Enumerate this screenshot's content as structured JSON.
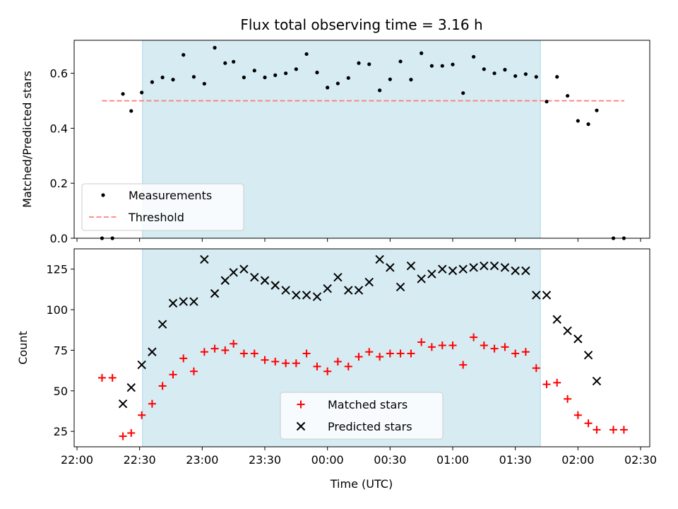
{
  "chart_data": [
    {
      "type": "scatter",
      "title": "Flux total observing time = 3.16 h",
      "xlabel": "",
      "ylabel": "Matched/Predicted stars",
      "ylim": [
        0,
        0.72
      ],
      "yticks": [
        "0.0",
        "0.2",
        "0.4",
        "0.6"
      ],
      "xticks_hours": [
        22,
        22.5,
        23,
        23.5,
        24,
        24.5,
        25,
        25.5,
        26,
        26.5
      ],
      "highlight_span_hours": [
        22.523,
        25.7
      ],
      "legend": {
        "position": "lower-left",
        "measurements": "Measurements",
        "threshold": "Threshold"
      },
      "threshold": {
        "value": 0.5,
        "x_range_hours": [
          22.2,
          26.37
        ],
        "color": "#ff7f7f"
      },
      "series": [
        {
          "name": "Measurements",
          "color": "#000000",
          "points": [
            [
              22.2,
              0.0
            ],
            [
              22.283,
              0.0
            ],
            [
              22.367,
              0.525
            ],
            [
              22.433,
              0.463
            ],
            [
              22.517,
              0.53
            ],
            [
              22.6,
              0.568
            ],
            [
              22.683,
              0.585
            ],
            [
              22.767,
              0.577
            ],
            [
              22.85,
              0.667
            ],
            [
              22.933,
              0.587
            ],
            [
              23.017,
              0.562
            ],
            [
              23.1,
              0.693
            ],
            [
              23.183,
              0.637
            ],
            [
              23.25,
              0.642
            ],
            [
              23.333,
              0.585
            ],
            [
              23.417,
              0.61
            ],
            [
              23.5,
              0.585
            ],
            [
              23.583,
              0.593
            ],
            [
              23.667,
              0.6
            ],
            [
              23.75,
              0.615
            ],
            [
              23.833,
              0.67
            ],
            [
              23.917,
              0.603
            ],
            [
              24.0,
              0.548
            ],
            [
              24.083,
              0.563
            ],
            [
              24.167,
              0.583
            ],
            [
              24.25,
              0.637
            ],
            [
              24.333,
              0.633
            ],
            [
              24.417,
              0.538
            ],
            [
              24.5,
              0.578
            ],
            [
              24.583,
              0.643
            ],
            [
              24.667,
              0.577
            ],
            [
              24.75,
              0.673
            ],
            [
              24.833,
              0.627
            ],
            [
              24.917,
              0.627
            ],
            [
              25.0,
              0.632
            ],
            [
              25.083,
              0.528
            ],
            [
              25.167,
              0.66
            ],
            [
              25.25,
              0.615
            ],
            [
              25.333,
              0.6
            ],
            [
              25.417,
              0.613
            ],
            [
              25.5,
              0.59
            ],
            [
              25.583,
              0.597
            ],
            [
              25.667,
              0.587
            ],
            [
              25.75,
              0.497
            ],
            [
              25.833,
              0.587
            ],
            [
              25.917,
              0.518
            ],
            [
              26.0,
              0.427
            ],
            [
              26.083,
              0.415
            ],
            [
              26.15,
              0.465
            ],
            [
              26.283,
              0.0
            ],
            [
              26.367,
              0.0
            ]
          ]
        }
      ]
    },
    {
      "type": "scatter",
      "title": "",
      "xlabel": "Time (UTC)",
      "ylabel": "Count",
      "ylim": [
        15.5,
        137.5
      ],
      "yticks": [
        "25",
        "50",
        "75",
        "100",
        "125"
      ],
      "xtick_labels": [
        "22:00",
        "22:30",
        "23:00",
        "23:30",
        "00:00",
        "00:30",
        "01:00",
        "01:30",
        "02:00",
        "02:30"
      ],
      "xticks_hours": [
        22,
        22.5,
        23,
        23.5,
        24,
        24.5,
        25,
        25.5,
        26,
        26.5
      ],
      "highlight_span_hours": [
        22.523,
        25.7
      ],
      "legend": {
        "position": "lower-center",
        "matched": "Matched stars",
        "predicted": "Predicted stars"
      },
      "series": [
        {
          "name": "Matched stars",
          "marker": "plus",
          "color": "#ff0000",
          "points": [
            [
              22.2,
              58
            ],
            [
              22.283,
              58
            ],
            [
              22.367,
              22
            ],
            [
              22.433,
              24
            ],
            [
              22.517,
              35
            ],
            [
              22.6,
              42
            ],
            [
              22.683,
              53
            ],
            [
              22.767,
              60
            ],
            [
              22.85,
              70
            ],
            [
              22.933,
              62
            ],
            [
              23.017,
              74
            ],
            [
              23.1,
              76
            ],
            [
              23.183,
              75
            ],
            [
              23.25,
              79
            ],
            [
              23.333,
              73
            ],
            [
              23.417,
              73
            ],
            [
              23.5,
              69
            ],
            [
              23.583,
              68
            ],
            [
              23.667,
              67
            ],
            [
              23.75,
              67
            ],
            [
              23.833,
              73
            ],
            [
              23.917,
              65
            ],
            [
              24.0,
              62
            ],
            [
              24.083,
              68
            ],
            [
              24.167,
              65
            ],
            [
              24.25,
              71
            ],
            [
              24.333,
              74
            ],
            [
              24.417,
              71
            ],
            [
              24.5,
              73
            ],
            [
              24.583,
              73
            ],
            [
              24.667,
              73
            ],
            [
              24.75,
              80
            ],
            [
              24.833,
              77
            ],
            [
              24.917,
              78
            ],
            [
              25.0,
              78
            ],
            [
              25.083,
              66
            ],
            [
              25.167,
              83
            ],
            [
              25.25,
              78
            ],
            [
              25.333,
              76
            ],
            [
              25.417,
              77
            ],
            [
              25.5,
              73
            ],
            [
              25.583,
              74
            ],
            [
              25.667,
              64
            ],
            [
              25.75,
              54
            ],
            [
              25.833,
              55
            ],
            [
              25.917,
              45
            ],
            [
              26.0,
              35
            ],
            [
              26.083,
              30
            ],
            [
              26.15,
              26
            ],
            [
              26.283,
              26
            ],
            [
              26.367,
              26
            ]
          ]
        },
        {
          "name": "Predicted stars",
          "marker": "x",
          "color": "#000000",
          "points": [
            [
              22.367,
              42
            ],
            [
              22.433,
              52
            ],
            [
              22.517,
              66
            ],
            [
              22.6,
              74
            ],
            [
              22.683,
              91
            ],
            [
              22.767,
              104
            ],
            [
              22.85,
              105
            ],
            [
              22.933,
              105
            ],
            [
              23.017,
              131
            ],
            [
              23.1,
              110
            ],
            [
              23.183,
              118
            ],
            [
              23.25,
              123
            ],
            [
              23.333,
              125
            ],
            [
              23.417,
              120
            ],
            [
              23.5,
              118
            ],
            [
              23.583,
              115
            ],
            [
              23.667,
              112
            ],
            [
              23.75,
              109
            ],
            [
              23.833,
              109
            ],
            [
              23.917,
              108
            ],
            [
              24.0,
              113
            ],
            [
              24.083,
              120
            ],
            [
              24.167,
              112
            ],
            [
              24.25,
              112
            ],
            [
              24.333,
              117
            ],
            [
              24.417,
              131
            ],
            [
              24.5,
              126
            ],
            [
              24.583,
              114
            ],
            [
              24.667,
              127
            ],
            [
              24.75,
              119
            ],
            [
              24.833,
              122
            ],
            [
              24.917,
              125
            ],
            [
              25.0,
              124
            ],
            [
              25.083,
              125
            ],
            [
              25.167,
              126
            ],
            [
              25.25,
              127
            ],
            [
              25.333,
              127
            ],
            [
              25.417,
              126
            ],
            [
              25.5,
              124
            ],
            [
              25.583,
              124
            ],
            [
              25.667,
              109
            ],
            [
              25.75,
              109
            ],
            [
              25.833,
              94
            ],
            [
              25.917,
              87
            ],
            [
              26.0,
              82
            ],
            [
              26.083,
              72
            ],
            [
              26.15,
              56
            ]
          ]
        }
      ]
    }
  ]
}
